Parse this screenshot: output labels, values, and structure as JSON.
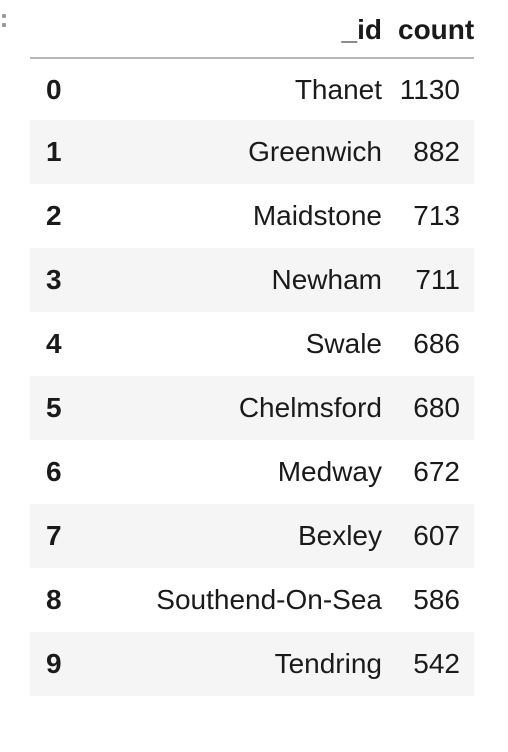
{
  "table": {
    "columns": [
      "",
      "_id",
      "count"
    ],
    "rows": [
      {
        "index": "0",
        "id": "Thanet",
        "count": "1130"
      },
      {
        "index": "1",
        "id": "Greenwich",
        "count": "882"
      },
      {
        "index": "2",
        "id": "Maidstone",
        "count": "713"
      },
      {
        "index": "3",
        "id": "Newham",
        "count": "711"
      },
      {
        "index": "4",
        "id": "Swale",
        "count": "686"
      },
      {
        "index": "5",
        "id": "Chelmsford",
        "count": "680"
      },
      {
        "index": "6",
        "id": "Medway",
        "count": "672"
      },
      {
        "index": "7",
        "id": "Bexley",
        "count": "607"
      },
      {
        "index": "8",
        "id": "Southend-On-Sea",
        "count": "586"
      },
      {
        "index": "9",
        "id": "Tendring",
        "count": "542"
      }
    ]
  }
}
